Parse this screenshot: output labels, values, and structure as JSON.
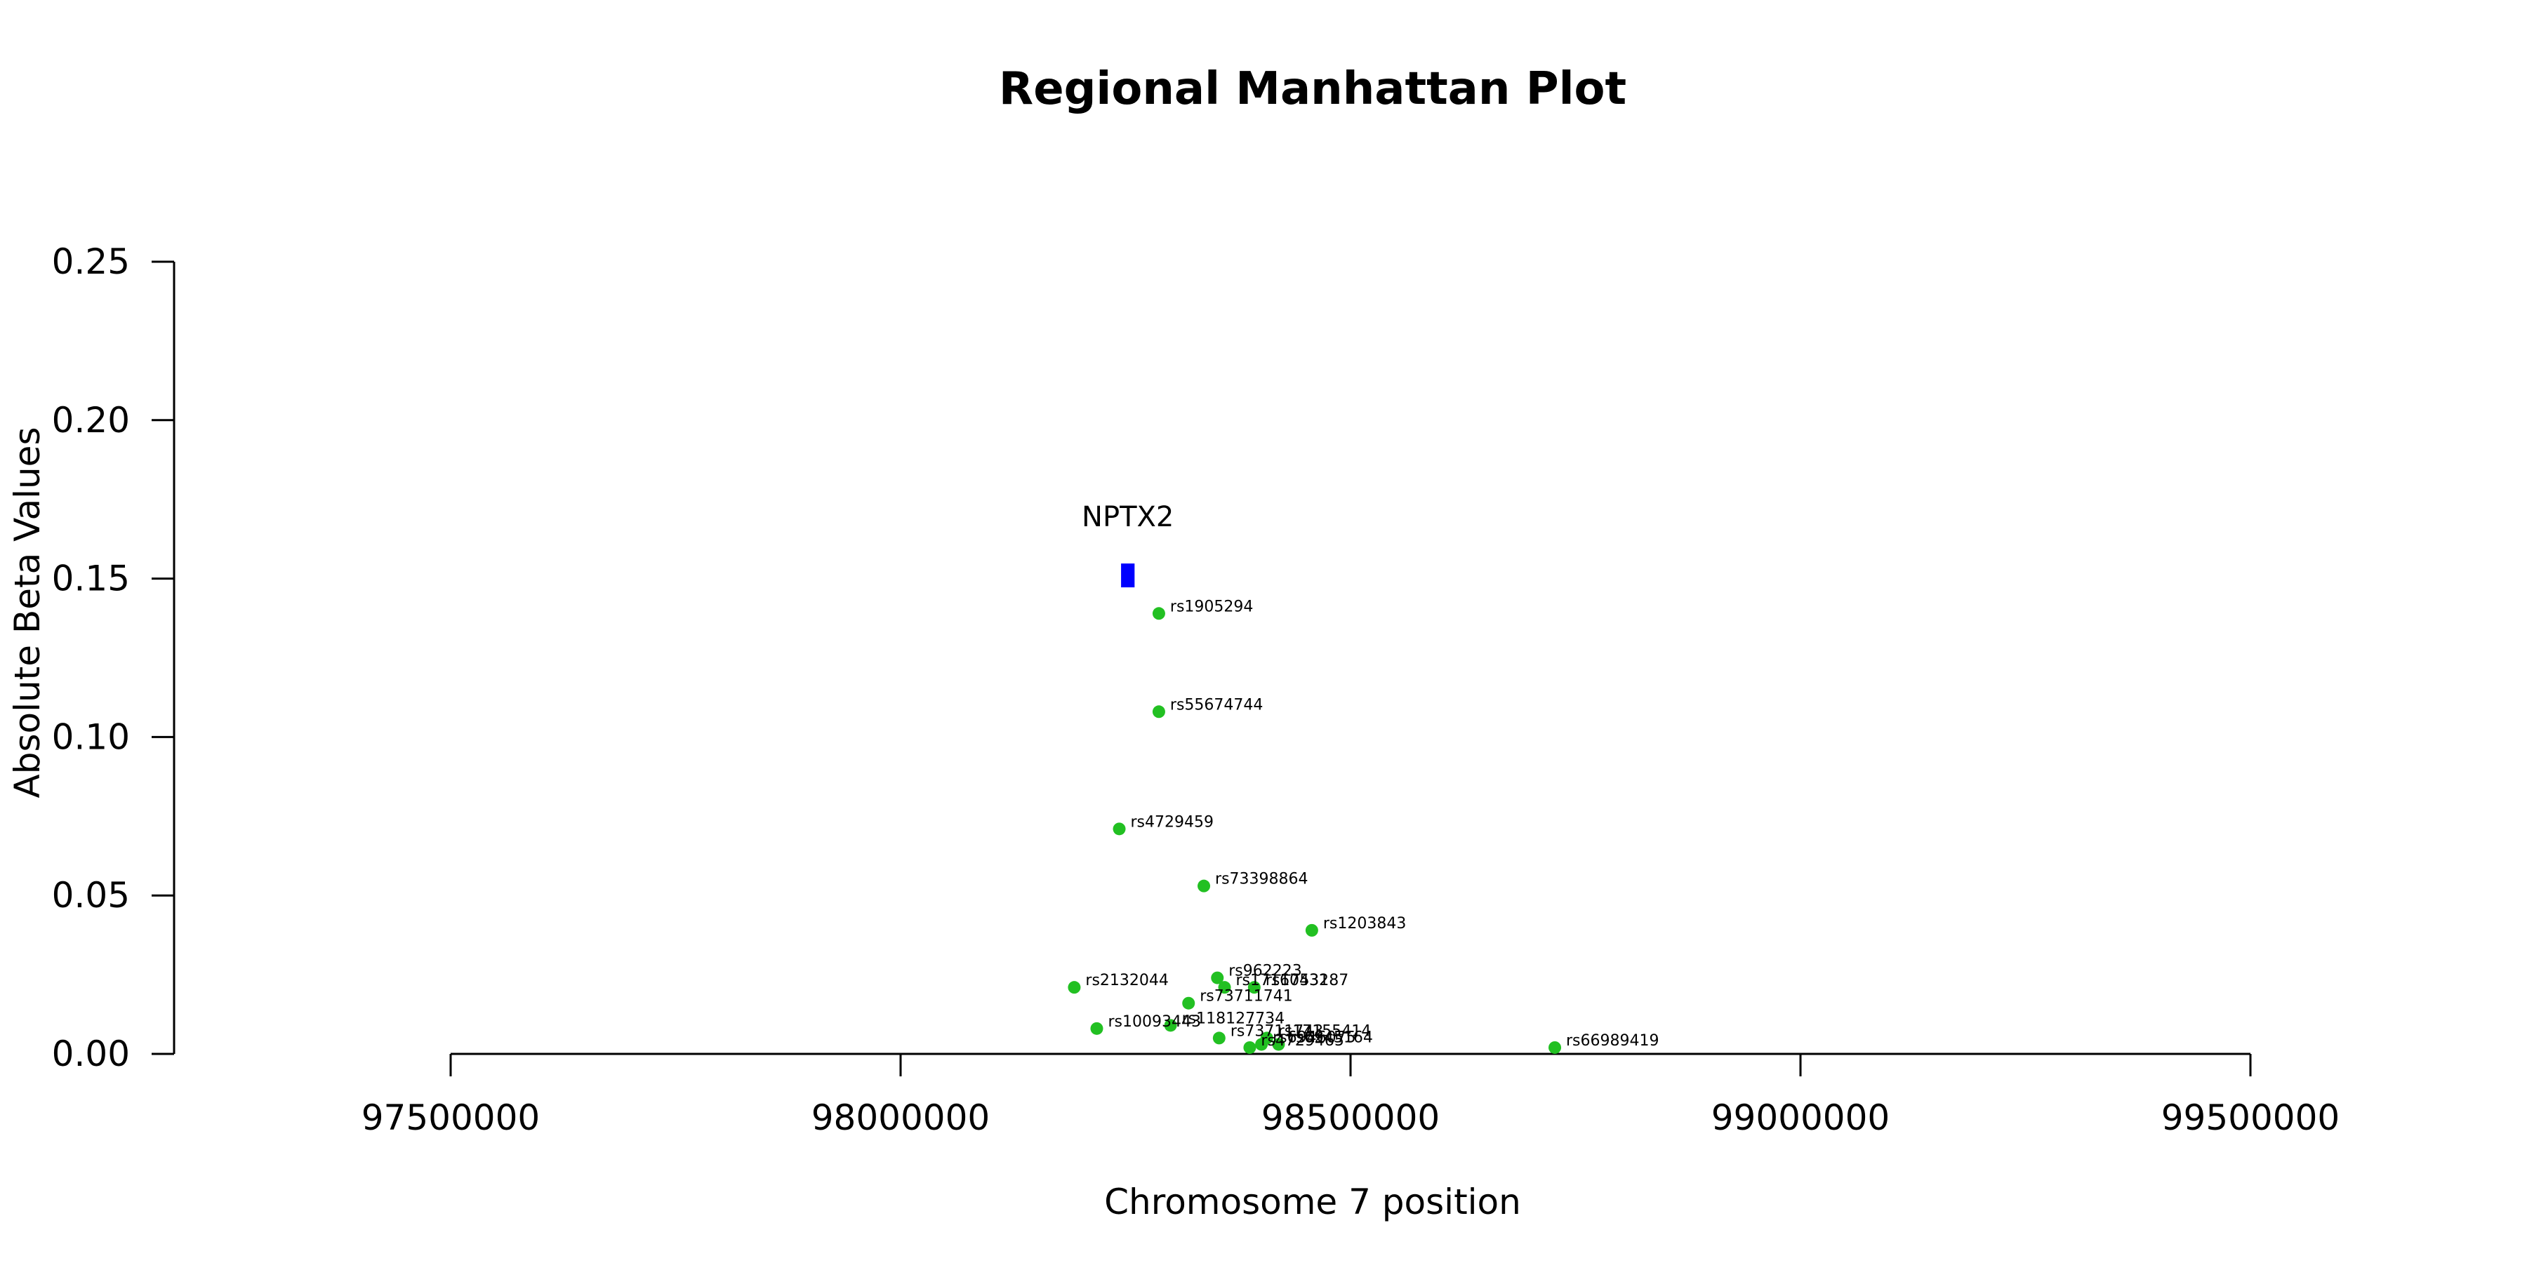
{
  "chart_data": {
    "type": "scatter",
    "title": "Regional Manhattan Plot",
    "xlabel": "Chromosome 7 position",
    "ylabel": "Absolute Beta Values",
    "xlim": [
      97500000,
      99500000
    ],
    "ylim": [
      0,
      0.25
    ],
    "xticks": [
      97500000,
      98000000,
      98500000,
      99000000,
      99500000
    ],
    "yticks": [
      0.0,
      0.05,
      0.1,
      0.15,
      0.2,
      0.25
    ],
    "ytick_labels": [
      "0.00",
      "0.05",
      "0.10",
      "0.15",
      "0.20",
      "0.25"
    ],
    "grid": false,
    "point_color": "#22c022",
    "gene_color": "#0000ff",
    "gene": {
      "name": "NPTX2",
      "start": 98245000,
      "end": 98260000,
      "y": 0.151
    },
    "points": [
      {
        "label": "rs1905294",
        "x": 98287000,
        "y": 0.139
      },
      {
        "label": "rs55674744",
        "x": 98287000,
        "y": 0.108
      },
      {
        "label": "rs4729459",
        "x": 98243000,
        "y": 0.071
      },
      {
        "label": "rs73398864",
        "x": 98337000,
        "y": 0.053
      },
      {
        "label": "rs1203843",
        "x": 98457000,
        "y": 0.039
      },
      {
        "label": "rs2132044",
        "x": 98193000,
        "y": 0.021
      },
      {
        "label": "rs962223",
        "x": 98352000,
        "y": 0.024
      },
      {
        "label": "rs17160432",
        "x": 98360000,
        "y": 0.021
      },
      {
        "label": "rs1753187",
        "x": 98393000,
        "y": 0.021
      },
      {
        "label": "rs73711741",
        "x": 98320000,
        "y": 0.016
      },
      {
        "label": "rs10093443",
        "x": 98218000,
        "y": 0.008
      },
      {
        "label": "rs118127734",
        "x": 98300000,
        "y": 0.009
      },
      {
        "label": "rs73711743",
        "x": 98354000,
        "y": 0.005
      },
      {
        "label": "rs17155414",
        "x": 98407000,
        "y": 0.005
      },
      {
        "label": "rs4729465",
        "x": 98388000,
        "y": 0.002
      },
      {
        "label": "rs6945164",
        "x": 98420000,
        "y": 0.003
      },
      {
        "label": "rs6946075",
        "x": 98401000,
        "y": 0.003
      },
      {
        "label": "rs66989419",
        "x": 98727000,
        "y": 0.002
      }
    ]
  }
}
